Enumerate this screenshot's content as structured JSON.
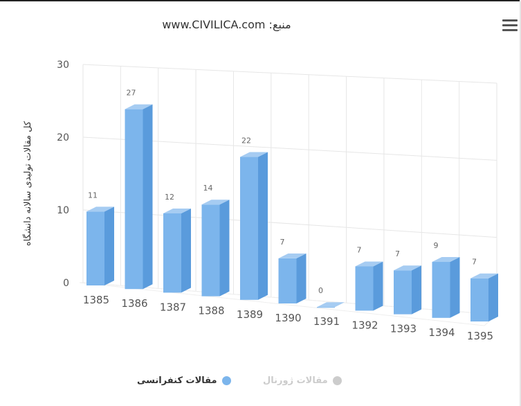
{
  "header": {
    "title": "منبع: www.CIVILICA.com"
  },
  "menu": {
    "icon": "hamburger-menu-icon"
  },
  "legend": [
    {
      "label": "مقالات کنفرانسی",
      "color": "#7cb5ec",
      "active": true
    },
    {
      "label": "مقالات ژورنال",
      "color": "#cccccc",
      "active": false
    }
  ],
  "chart_data": {
    "type": "bar",
    "ylabel": "کل مقالات تولیدی سالانه دانشگاه",
    "ylim": [
      0,
      30
    ],
    "yticks": [
      "0",
      "10",
      "20",
      "30"
    ],
    "categories": [
      "1385",
      "1386",
      "1387",
      "1388",
      "1389",
      "1390",
      "1391",
      "1392",
      "1393",
      "1394",
      "1395"
    ],
    "series": [
      {
        "name": "مقالات کنفرانسی",
        "color": "#7cb5ec",
        "values": [
          11,
          27,
          12,
          14,
          22,
          7,
          0,
          7,
          7,
          9,
          7
        ]
      }
    ],
    "data_labels": [
      "11",
      "27",
      "12",
      "14",
      "22",
      "7",
      "0",
      "7",
      "7",
      "9",
      "7"
    ],
    "grid": true
  }
}
